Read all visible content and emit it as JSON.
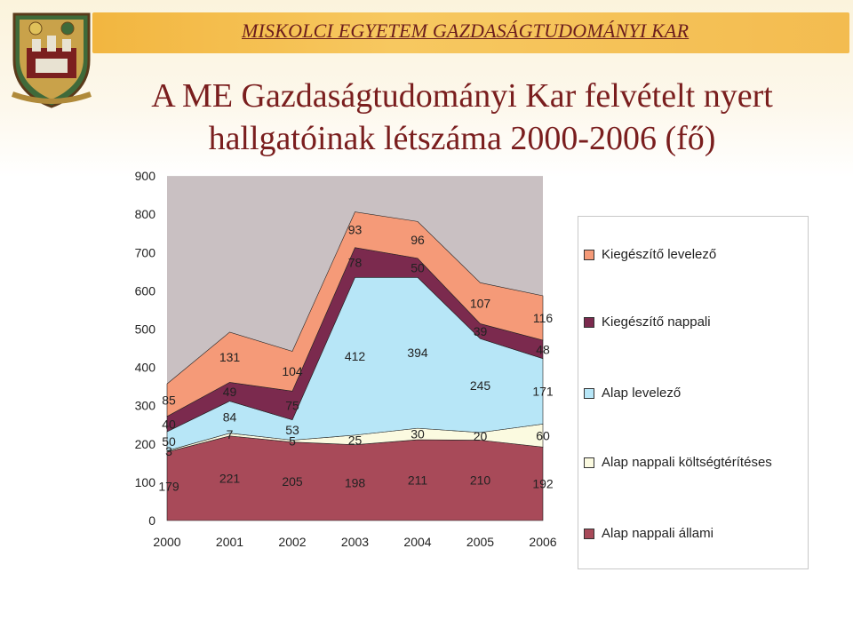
{
  "header": {
    "institution": "MISKOLCI EGYETEM GAZDASÁGTUDOMÁNYI KAR",
    "title_line1": "A ME Gazdaságtudományi Kar felvételt nyert",
    "title_line2": "hallgatóinak létszáma 2000-2006 (fő)"
  },
  "chart_data": {
    "type": "area",
    "stacked": true,
    "title": "A ME Gazdaságtudományi Kar felvételt nyert hallgatóinak létszáma 2000-2006 (fő)",
    "categories": [
      "2000",
      "2001",
      "2002",
      "2003",
      "2004",
      "2005",
      "2006"
    ],
    "ylim": [
      0,
      900
    ],
    "yticks": [
      0,
      100,
      200,
      300,
      400,
      500,
      600,
      700,
      800,
      900
    ],
    "legend_position": "right",
    "series": [
      {
        "name": "Alap nappali állami",
        "values": [
          179,
          221,
          205,
          198,
          211,
          210,
          192
        ],
        "color": "#a84a59"
      },
      {
        "name": "Alap nappali költségtérítéses",
        "values": [
          3,
          7,
          5,
          25,
          30,
          20,
          60
        ],
        "color": "#fbfae0"
      },
      {
        "name": "Alap levelező",
        "values": [
          50,
          84,
          53,
          412,
          394,
          245,
          171
        ],
        "color": "#b7e6f7"
      },
      {
        "name": "Kiegészítő nappali",
        "values": [
          40,
          49,
          75,
          78,
          50,
          39,
          48
        ],
        "color": "#7b2a4e"
      },
      {
        "name": "Kiegészítő levelező",
        "values": [
          85,
          131,
          104,
          93,
          96,
          107,
          116
        ],
        "color": "#f59a78"
      }
    ]
  },
  "legend_order": [
    "Kiegészítő levelező",
    "Kiegészítő nappali",
    "Alap levelező",
    "Alap nappali költségtérítéses",
    "Alap nappali állami"
  ],
  "colors": {
    "plot_background": "#c9c0c2",
    "title_color": "#7a1e1e",
    "banner": "#f4bd50"
  }
}
